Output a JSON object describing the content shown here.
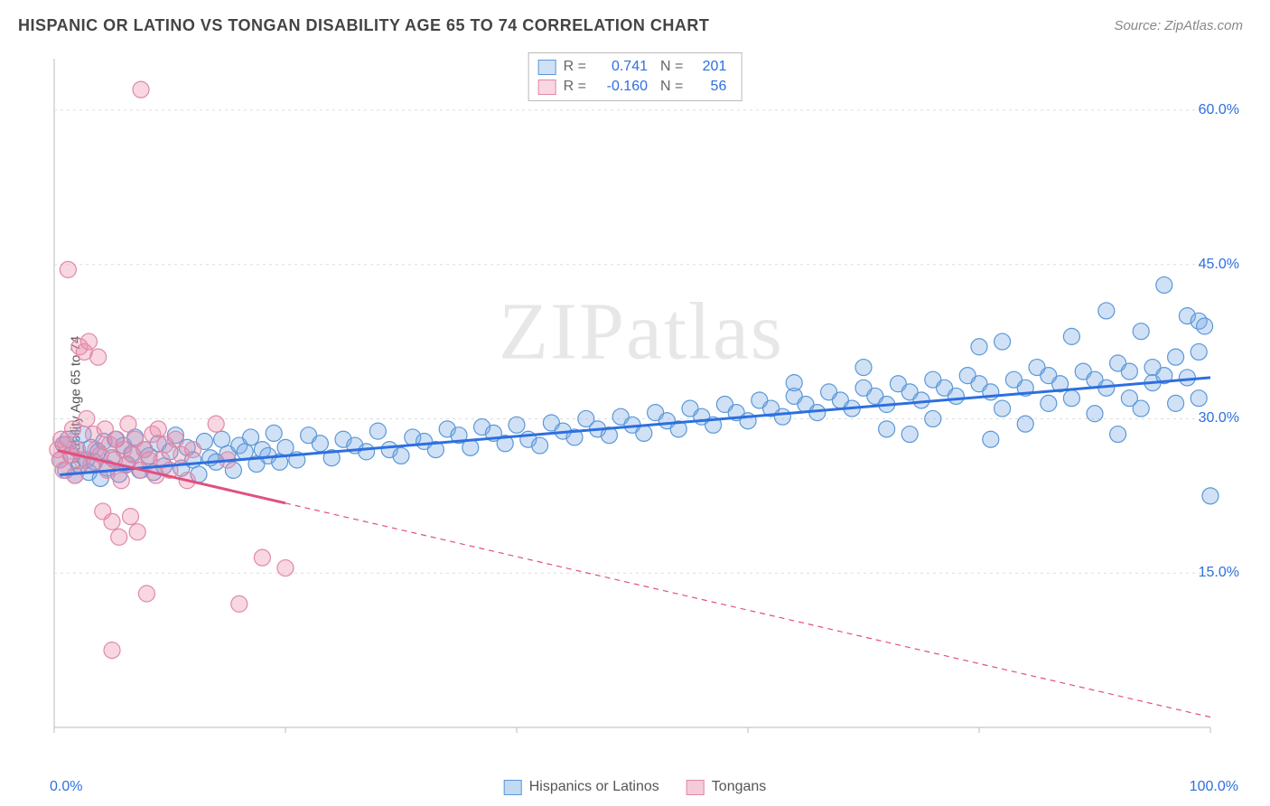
{
  "title": "HISPANIC OR LATINO VS TONGAN DISABILITY AGE 65 TO 74 CORRELATION CHART",
  "source": "Source: ZipAtlas.com",
  "ylabel": "Disability Age 65 to 74",
  "watermark": "ZIPatlas",
  "chart": {
    "type": "scatter",
    "xlim": [
      0,
      100
    ],
    "ylim": [
      0,
      65
    ],
    "xticks": [
      0,
      20,
      40,
      60,
      80,
      100
    ],
    "yticks": [
      15,
      30,
      45,
      60
    ],
    "xtick_labels": [
      "0.0%",
      "",
      "",
      "",
      "",
      "100.0%"
    ],
    "ytick_labels": [
      "15.0%",
      "30.0%",
      "45.0%",
      "60.0%"
    ],
    "grid_color": "#dddddd",
    "border_color": "#bbbbbb",
    "background_color": "#ffffff",
    "marker_radius": 9,
    "marker_stroke_width": 1.2,
    "trend_line_width": 3,
    "series": [
      {
        "name": "Hispanics or Latinos",
        "fill": "rgba(120,170,230,0.35)",
        "stroke": "#5a98d8",
        "trend_color": "#2d6fe0",
        "trend_dash": "none",
        "R": "0.741",
        "N": "201",
        "trend": {
          "x1": 0,
          "y1": 24.5,
          "x2": 100,
          "y2": 34.0
        },
        "points": [
          [
            0.5,
            26
          ],
          [
            0.8,
            27.5
          ],
          [
            1,
            25
          ],
          [
            1.2,
            28
          ],
          [
            1.5,
            26.5
          ],
          [
            1.8,
            24.5
          ],
          [
            2,
            27
          ],
          [
            2.2,
            25.5
          ],
          [
            2.5,
            28.5
          ],
          [
            2.8,
            26
          ],
          [
            3,
            24.8
          ],
          [
            3.2,
            27.2
          ],
          [
            3.5,
            25.8
          ],
          [
            3.8,
            26.8
          ],
          [
            4,
            24.2
          ],
          [
            4.3,
            27.8
          ],
          [
            4.6,
            25.2
          ],
          [
            5,
            26.2
          ],
          [
            5.3,
            28
          ],
          [
            5.6,
            24.6
          ],
          [
            6,
            27.4
          ],
          [
            6.3,
            25.6
          ],
          [
            6.7,
            26.6
          ],
          [
            7,
            28.2
          ],
          [
            7.4,
            25
          ],
          [
            7.8,
            27
          ],
          [
            8.2,
            26.4
          ],
          [
            8.6,
            24.8
          ],
          [
            9,
            27.6
          ],
          [
            9.5,
            25.4
          ],
          [
            10,
            26.8
          ],
          [
            10.5,
            28.4
          ],
          [
            11,
            25.2
          ],
          [
            11.5,
            27.2
          ],
          [
            12,
            26
          ],
          [
            12.5,
            24.6
          ],
          [
            13,
            27.8
          ],
          [
            13.5,
            26.2
          ],
          [
            14,
            25.8
          ],
          [
            14.5,
            28
          ],
          [
            15,
            26.6
          ],
          [
            15.5,
            25
          ],
          [
            16,
            27.4
          ],
          [
            16.5,
            26.8
          ],
          [
            17,
            28.2
          ],
          [
            17.5,
            25.6
          ],
          [
            18,
            27
          ],
          [
            18.5,
            26.4
          ],
          [
            19,
            28.6
          ],
          [
            19.5,
            25.8
          ],
          [
            20,
            27.2
          ],
          [
            21,
            26
          ],
          [
            22,
            28.4
          ],
          [
            23,
            27.6
          ],
          [
            24,
            26.2
          ],
          [
            25,
            28
          ],
          [
            26,
            27.4
          ],
          [
            27,
            26.8
          ],
          [
            28,
            28.8
          ],
          [
            29,
            27
          ],
          [
            30,
            26.4
          ],
          [
            31,
            28.2
          ],
          [
            32,
            27.8
          ],
          [
            33,
            27
          ],
          [
            34,
            29
          ],
          [
            35,
            28.4
          ],
          [
            36,
            27.2
          ],
          [
            37,
            29.2
          ],
          [
            38,
            28.6
          ],
          [
            39,
            27.6
          ],
          [
            40,
            29.4
          ],
          [
            41,
            28
          ],
          [
            42,
            27.4
          ],
          [
            43,
            29.6
          ],
          [
            44,
            28.8
          ],
          [
            45,
            28.2
          ],
          [
            46,
            30
          ],
          [
            47,
            29
          ],
          [
            48,
            28.4
          ],
          [
            49,
            30.2
          ],
          [
            50,
            29.4
          ],
          [
            51,
            28.6
          ],
          [
            52,
            30.6
          ],
          [
            53,
            29.8
          ],
          [
            54,
            29
          ],
          [
            55,
            31
          ],
          [
            56,
            30.2
          ],
          [
            57,
            29.4
          ],
          [
            58,
            31.4
          ],
          [
            59,
            30.6
          ],
          [
            60,
            29.8
          ],
          [
            61,
            31.8
          ],
          [
            62,
            31
          ],
          [
            63,
            30.2
          ],
          [
            64,
            32.2
          ],
          [
            64,
            33.5
          ],
          [
            65,
            31.4
          ],
          [
            66,
            30.6
          ],
          [
            67,
            32.6
          ],
          [
            68,
            31.8
          ],
          [
            69,
            31
          ],
          [
            70,
            33
          ],
          [
            70,
            35
          ],
          [
            71,
            32.2
          ],
          [
            72,
            31.4
          ],
          [
            72,
            29
          ],
          [
            73,
            33.4
          ],
          [
            74,
            32.6
          ],
          [
            74,
            28.5
          ],
          [
            75,
            31.8
          ],
          [
            76,
            33.8
          ],
          [
            76,
            30
          ],
          [
            77,
            33
          ],
          [
            78,
            32.2
          ],
          [
            79,
            34.2
          ],
          [
            80,
            33.4
          ],
          [
            80,
            37
          ],
          [
            81,
            32.6
          ],
          [
            81,
            28
          ],
          [
            82,
            37.5
          ],
          [
            82,
            31
          ],
          [
            83,
            33.8
          ],
          [
            84,
            33
          ],
          [
            84,
            29.5
          ],
          [
            85,
            35
          ],
          [
            86,
            34.2
          ],
          [
            86,
            31.5
          ],
          [
            87,
            33.4
          ],
          [
            88,
            38
          ],
          [
            88,
            32
          ],
          [
            89,
            34.6
          ],
          [
            90,
            33.8
          ],
          [
            90,
            30.5
          ],
          [
            91,
            40.5
          ],
          [
            91,
            33
          ],
          [
            92,
            35.4
          ],
          [
            92,
            28.5
          ],
          [
            93,
            34.6
          ],
          [
            93,
            32
          ],
          [
            94,
            38.5
          ],
          [
            94,
            31
          ],
          [
            95,
            35
          ],
          [
            95,
            33.5
          ],
          [
            96,
            43
          ],
          [
            96,
            34.2
          ],
          [
            97,
            36
          ],
          [
            97,
            31.5
          ],
          [
            98,
            40
          ],
          [
            98,
            34
          ],
          [
            99,
            39.5
          ],
          [
            99,
            36.5
          ],
          [
            99,
            32
          ],
          [
            99.5,
            39
          ],
          [
            100,
            22.5
          ]
        ]
      },
      {
        "name": "Tongans",
        "fill": "rgba(235,140,170,0.35)",
        "stroke": "#e088a8",
        "trend_color": "#e05080",
        "trend_dash": "6,5",
        "R": "-0.160",
        "N": "56",
        "trend": {
          "x1": 0,
          "y1": 27.0,
          "x2": 100,
          "y2": 1.0
        },
        "points": [
          [
            0.3,
            27
          ],
          [
            0.5,
            26
          ],
          [
            0.6,
            28
          ],
          [
            0.8,
            25
          ],
          [
            1,
            27.5
          ],
          [
            1.2,
            44.5
          ],
          [
            1.4,
            26.5
          ],
          [
            1.6,
            29
          ],
          [
            1.8,
            24.5
          ],
          [
            2,
            27
          ],
          [
            2.2,
            37
          ],
          [
            2.4,
            26
          ],
          [
            2.6,
            36.5
          ],
          [
            2.8,
            30
          ],
          [
            3,
            37.5
          ],
          [
            3.2,
            25.5
          ],
          [
            3.4,
            28.5
          ],
          [
            3.6,
            27
          ],
          [
            3.8,
            36
          ],
          [
            4,
            26.5
          ],
          [
            4.2,
            21
          ],
          [
            4.4,
            29
          ],
          [
            4.6,
            25
          ],
          [
            4.8,
            27.5
          ],
          [
            5,
            20
          ],
          [
            5.2,
            26
          ],
          [
            5.4,
            28
          ],
          [
            5.6,
            18.5
          ],
          [
            5.8,
            24
          ],
          [
            6,
            27
          ],
          [
            6.2,
            25.5
          ],
          [
            6.4,
            29.5
          ],
          [
            6.6,
            20.5
          ],
          [
            6.8,
            26.5
          ],
          [
            7,
            28
          ],
          [
            7.2,
            19
          ],
          [
            7.5,
            25
          ],
          [
            7.8,
            27
          ],
          [
            8,
            13
          ],
          [
            8.2,
            26
          ],
          [
            8.5,
            28.5
          ],
          [
            8.8,
            24.5
          ],
          [
            9,
            29
          ],
          [
            9.3,
            26
          ],
          [
            9.6,
            27.5
          ],
          [
            10,
            25
          ],
          [
            10.5,
            28
          ],
          [
            11,
            26.5
          ],
          [
            11.5,
            24
          ],
          [
            12,
            27
          ],
          [
            14,
            29.5
          ],
          [
            15,
            26
          ],
          [
            16,
            12
          ],
          [
            18,
            16.5
          ],
          [
            20,
            15.5
          ],
          [
            7.5,
            62
          ],
          [
            5,
            7.5
          ]
        ]
      }
    ]
  },
  "legend_bottom": [
    {
      "label": "Hispanics or Latinos",
      "fill": "rgba(120,170,230,0.45)",
      "stroke": "#5a98d8"
    },
    {
      "label": "Tongans",
      "fill": "rgba(235,140,170,0.45)",
      "stroke": "#e088a8"
    }
  ],
  "xaxis_left_label": "0.0%",
  "xaxis_right_label": "100.0%"
}
